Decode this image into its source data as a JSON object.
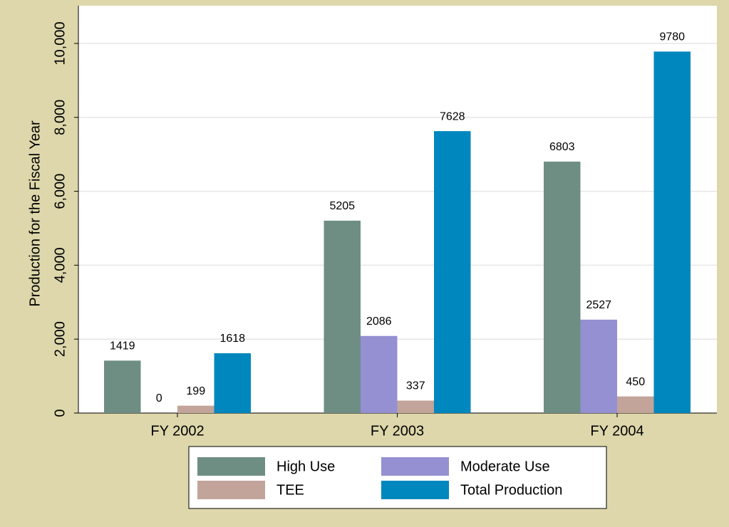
{
  "chart_data": {
    "type": "bar",
    "y_label": "Production for the Fiscal Year",
    "categories": [
      "FY 2002",
      "FY 2003",
      "FY 2004"
    ],
    "series": [
      {
        "name": "High Use",
        "color": "#6e8e84",
        "values": [
          1419,
          5205,
          6803
        ]
      },
      {
        "name": "Moderate Use",
        "color": "#9590d2",
        "values": [
          0,
          2086,
          2527
        ]
      },
      {
        "name": "TEE",
        "color": "#c2a49a",
        "values": [
          199,
          337,
          450
        ]
      },
      {
        "name": "Total Production",
        "color": "#0087bd",
        "values": [
          1618,
          7628,
          9780
        ]
      }
    ],
    "ylim": [
      0,
      10000
    ],
    "yticks": [
      0,
      {
        "value": 2000,
        "label": "2,000"
      },
      {
        "value": 4000,
        "label": "4,000"
      },
      {
        "value": 6000,
        "label": "6,000"
      },
      {
        "value": 8000,
        "label": "8,000"
      },
      {
        "value": 10000,
        "label": "10,000"
      }
    ],
    "grid": true
  }
}
